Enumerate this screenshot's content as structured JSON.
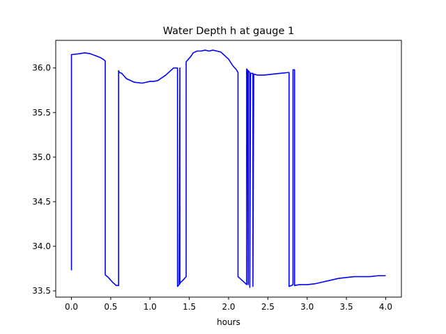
{
  "chart_data": {
    "type": "line",
    "title": "Water Depth h at gauge 1",
    "xlabel": "hours",
    "ylabel": "",
    "xlim": [
      -0.2,
      4.2
    ],
    "ylim": [
      33.43,
      36.31
    ],
    "xticks": [
      0.0,
      0.5,
      1.0,
      1.5,
      2.0,
      2.5,
      3.0,
      3.5,
      4.0
    ],
    "xtick_labels": [
      "0.0",
      "0.5",
      "1.0",
      "1.5",
      "2.0",
      "2.5",
      "3.0",
      "3.5",
      "4.0"
    ],
    "yticks": [
      33.5,
      34.0,
      34.5,
      35.0,
      35.5,
      36.0
    ],
    "ytick_labels": [
      "33.5",
      "34.0",
      "34.5",
      "35.0",
      "35.5",
      "36.0"
    ],
    "grid": false,
    "legend": "none",
    "series": [
      {
        "color": "#0000ff",
        "x": [
          0.0,
          0.0,
          0.1,
          0.17,
          0.24,
          0.3,
          0.36,
          0.4,
          0.43,
          0.43,
          0.47,
          0.52,
          0.57,
          0.6,
          0.6,
          0.61,
          0.64,
          0.67,
          0.7,
          0.75,
          0.8,
          0.9,
          0.95,
          1.0,
          1.05,
          1.1,
          1.15,
          1.2,
          1.25,
          1.3,
          1.35,
          1.35,
          1.38,
          1.38,
          1.37,
          1.42,
          1.46,
          1.46,
          1.49,
          1.52,
          1.55,
          1.6,
          1.65,
          1.7,
          1.75,
          1.8,
          1.85,
          1.9,
          1.95,
          2.0,
          2.05,
          2.1,
          2.12,
          2.12,
          2.22,
          2.23,
          2.23,
          2.24,
          2.25,
          2.25,
          2.26,
          2.27,
          2.27,
          2.28,
          2.31,
          2.31,
          2.32,
          2.33,
          2.37,
          2.45,
          2.55,
          2.65,
          2.77,
          2.77,
          2.8,
          2.82,
          2.82,
          2.83,
          2.84,
          2.84,
          2.9,
          3.0,
          3.1,
          3.2,
          3.3,
          3.4,
          3.5,
          3.6,
          3.7,
          3.8,
          3.9,
          4.0
        ],
        "y": [
          33.73,
          36.15,
          36.16,
          36.17,
          36.16,
          36.14,
          36.12,
          36.1,
          36.08,
          33.68,
          33.65,
          33.6,
          33.56,
          33.56,
          35.97,
          35.95,
          35.94,
          35.91,
          35.88,
          35.86,
          35.84,
          35.83,
          35.84,
          35.85,
          35.85,
          35.86,
          35.89,
          35.92,
          35.96,
          36.0,
          36.0,
          33.55,
          33.58,
          36.0,
          33.58,
          33.62,
          33.66,
          36.07,
          36.1,
          36.13,
          36.17,
          36.19,
          36.19,
          36.2,
          36.19,
          36.2,
          36.19,
          36.18,
          36.14,
          36.1,
          36.03,
          35.98,
          35.95,
          33.66,
          33.58,
          33.57,
          35.99,
          35.98,
          33.57,
          35.97,
          35.96,
          35.95,
          33.54,
          35.94,
          35.94,
          33.55,
          35.93,
          35.93,
          35.92,
          35.92,
          35.93,
          35.94,
          35.95,
          33.55,
          33.56,
          33.57,
          35.98,
          35.98,
          35.98,
          33.56,
          33.57,
          33.57,
          33.58,
          33.6,
          33.62,
          33.64,
          33.65,
          33.66,
          33.66,
          33.66,
          33.67,
          33.67
        ]
      }
    ]
  }
}
